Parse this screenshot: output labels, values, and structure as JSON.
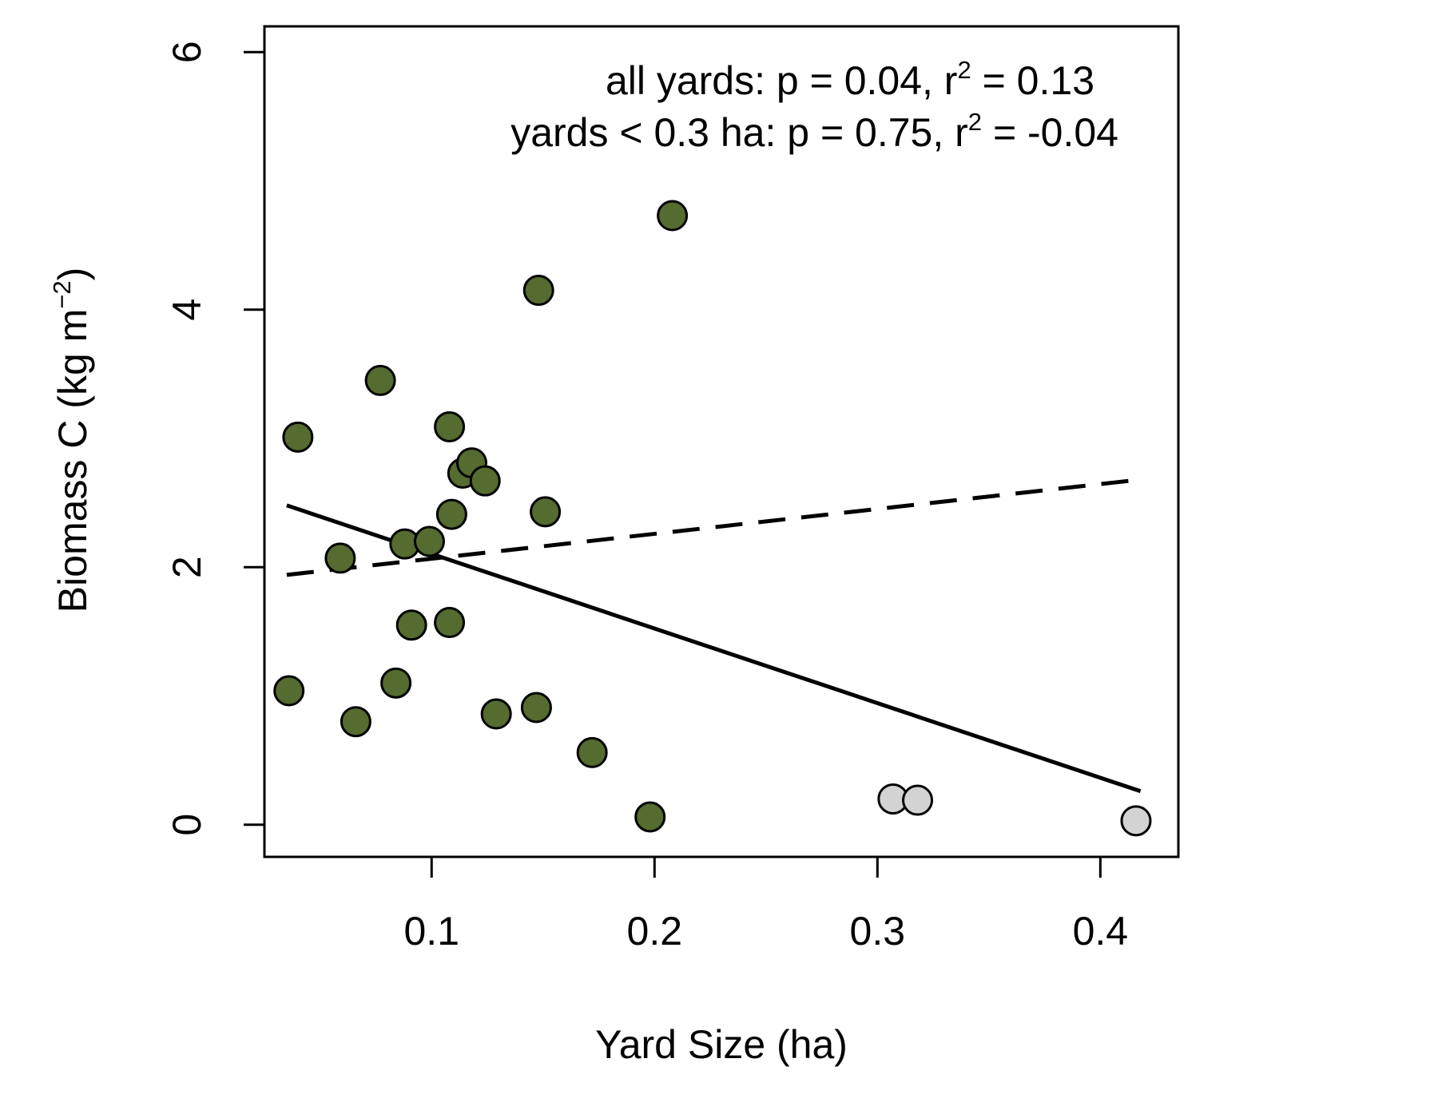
{
  "chart_data": {
    "type": "scatter",
    "title": "",
    "xlabel": "Yard Size (ha)",
    "ylabel": {
      "main": "Biomass C (kg m",
      "sup": "−2",
      "close": ")"
    },
    "xlim": [
      0.025,
      0.435
    ],
    "ylim": [
      -0.25,
      6.2
    ],
    "x_ticks": [
      {
        "value": 0.1,
        "label": "0.1"
      },
      {
        "value": 0.2,
        "label": "0.2"
      },
      {
        "value": 0.3,
        "label": "0.3"
      },
      {
        "value": 0.4,
        "label": "0.4"
      }
    ],
    "y_ticks": [
      {
        "value": 0,
        "label": "0"
      },
      {
        "value": 2,
        "label": "2"
      },
      {
        "value": 4,
        "label": "4"
      },
      {
        "value": 6,
        "label": "6"
      }
    ],
    "grid": false,
    "series": [
      {
        "fill": "#556b2f",
        "points": [
          {
            "x": 0.04,
            "y": 3.01
          },
          {
            "x": 0.036,
            "y": 1.04
          },
          {
            "x": 0.059,
            "y": 2.07
          },
          {
            "x": 0.066,
            "y": 0.8
          },
          {
            "x": 0.077,
            "y": 3.45
          },
          {
            "x": 0.084,
            "y": 1.1
          },
          {
            "x": 0.088,
            "y": 2.18
          },
          {
            "x": 0.091,
            "y": 1.55
          },
          {
            "x": 0.099,
            "y": 2.2
          },
          {
            "x": 0.108,
            "y": 3.09
          },
          {
            "x": 0.109,
            "y": 2.41
          },
          {
            "x": 0.108,
            "y": 1.57
          },
          {
            "x": 0.114,
            "y": 2.73
          },
          {
            "x": 0.118,
            "y": 2.81
          },
          {
            "x": 0.124,
            "y": 2.67
          },
          {
            "x": 0.129,
            "y": 0.86
          },
          {
            "x": 0.148,
            "y": 4.15
          },
          {
            "x": 0.147,
            "y": 0.91
          },
          {
            "x": 0.151,
            "y": 2.43
          },
          {
            "x": 0.172,
            "y": 0.56
          },
          {
            "x": 0.198,
            "y": 0.06
          },
          {
            "x": 0.208,
            "y": 4.73
          }
        ]
      },
      {
        "fill": "#d3d3d3",
        "points": [
          {
            "x": 0.307,
            "y": 0.2
          },
          {
            "x": 0.318,
            "y": 0.19
          },
          {
            "x": 0.416,
            "y": 0.03
          }
        ]
      }
    ],
    "lines": [
      {
        "style": "solid",
        "x": [
          0.035,
          0.418
        ],
        "y": [
          2.48,
          0.26
        ]
      },
      {
        "style": "dashed",
        "x": [
          0.035,
          0.418
        ],
        "y": [
          1.94,
          2.68
        ]
      }
    ],
    "annotations": [
      {
        "pre": "all yards: p = 0.04, r",
        "sup": "2",
        "post": " = 0.13"
      },
      {
        "pre": "yards < 0.3 ha: p = 0.75, r",
        "sup": "2",
        "post": " = -0.04"
      }
    ]
  }
}
